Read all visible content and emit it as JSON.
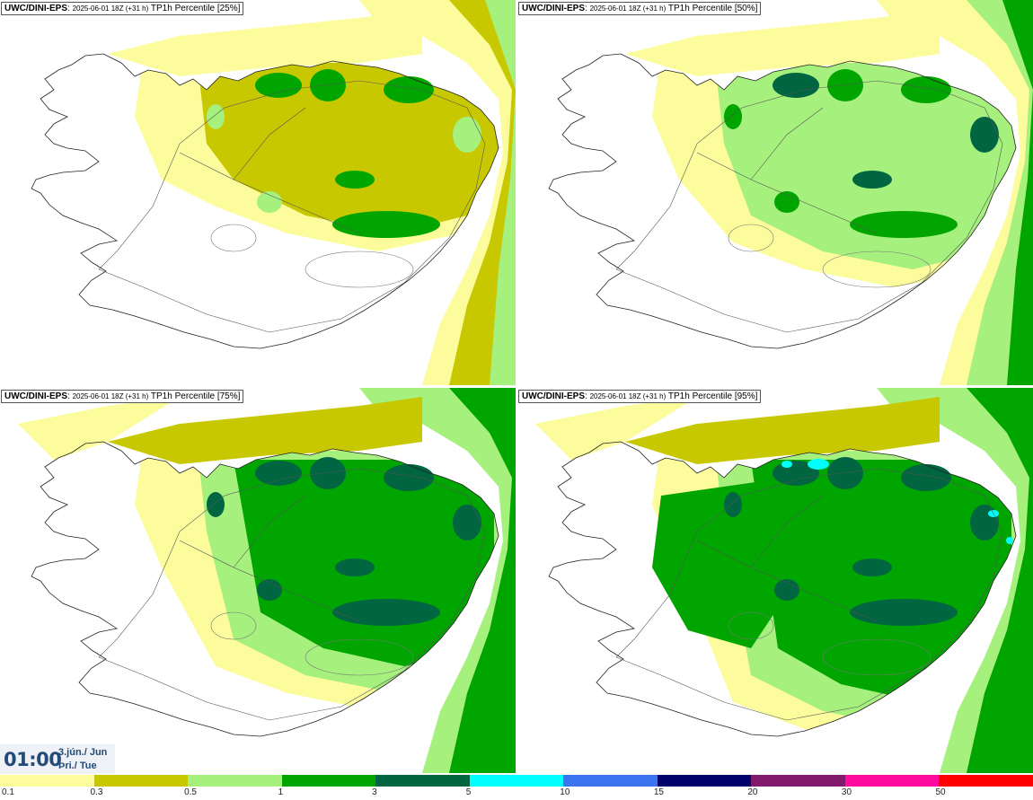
{
  "panels": [
    {
      "source": "UWC/DINI-EPS",
      "run": "2025-06-01 18Z (+31 h)",
      "product": "TP1h Percentile [25%]",
      "level": 1
    },
    {
      "source": "UWC/DINI-EPS",
      "run": "2025-06-01 18Z (+31 h)",
      "product": "TP1h Percentile [50%]",
      "level": 2
    },
    {
      "source": "UWC/DINI-EPS",
      "run": "2025-06-01 18Z (+31 h)",
      "product": "TP1h Percentile [75%]",
      "level": 3
    },
    {
      "source": "UWC/DINI-EPS",
      "run": "2025-06-01 18Z (+31 h)",
      "product": "TP1h Percentile [95%]",
      "level": 4
    }
  ],
  "valid_time": {
    "time": "01:00",
    "date_line1": "3.jún./ Jun",
    "date_line2": "Þri./ Tue"
  },
  "legend": {
    "colors": [
      "#fcfc9c",
      "#c8c800",
      "#a6f07e",
      "#00a500",
      "#006642",
      "#00ffff",
      "#3c74f0",
      "#00006b",
      "#821a6b",
      "#ff0aa0",
      "#ff0000"
    ],
    "labels": [
      "0.1",
      "0.3",
      "0.5",
      "1",
      "3",
      "5",
      "10",
      "15",
      "20",
      "30",
      "50"
    ]
  }
}
